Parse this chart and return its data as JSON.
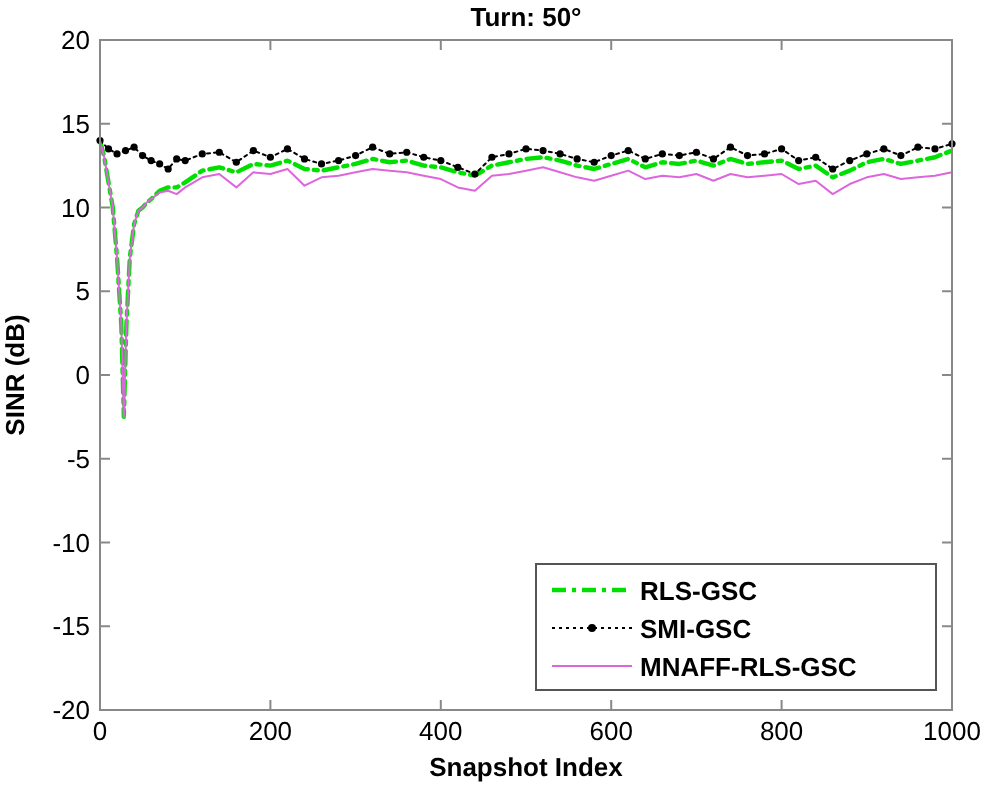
{
  "chart_data": {
    "type": "line",
    "title": "Turn: 50°",
    "xlabel": "Snapshot Index",
    "ylabel": "SINR (dB)",
    "xlim": [
      0,
      1000
    ],
    "xticks": [
      0,
      200,
      400,
      600,
      800,
      1000
    ],
    "ylim": [
      -20,
      20
    ],
    "yticks": [
      -20,
      -15,
      -10,
      -5,
      0,
      5,
      10,
      15,
      20
    ],
    "grid": false,
    "legend": "bottom right",
    "series": [
      {
        "name": "RLS-GSC",
        "color": "#00e000",
        "line_style": "dashed",
        "marker": "none",
        "x": [
          0,
          5,
          10,
          15,
          20,
          25,
          28,
          31,
          35,
          40,
          45,
          50,
          55,
          60,
          70,
          80,
          90,
          100,
          120,
          140,
          160,
          180,
          200,
          220,
          240,
          260,
          280,
          300,
          320,
          340,
          360,
          380,
          400,
          420,
          440,
          460,
          480,
          500,
          520,
          540,
          560,
          580,
          600,
          620,
          640,
          660,
          680,
          700,
          720,
          740,
          760,
          780,
          800,
          820,
          840,
          860,
          880,
          900,
          920,
          940,
          960,
          980,
          1000
        ],
        "values": [
          14,
          13,
          11.5,
          10,
          7,
          3,
          -2.5,
          3,
          7,
          9,
          9.8,
          10,
          10.3,
          10.5,
          11,
          11.2,
          11.2,
          11.5,
          12.2,
          12.4,
          12.1,
          12.6,
          12.5,
          12.8,
          12.3,
          12.2,
          12.4,
          12.6,
          12.9,
          12.7,
          12.8,
          12.5,
          12.4,
          12.1,
          11.9,
          12.5,
          12.7,
          12.9,
          13.0,
          12.8,
          12.5,
          12.3,
          12.6,
          12.9,
          12.4,
          12.7,
          12.6,
          12.8,
          12.5,
          12.9,
          12.6,
          12.7,
          12.8,
          12.3,
          12.5,
          11.8,
          12.2,
          12.7,
          12.9,
          12.6,
          12.8,
          13.0,
          13.4
        ]
      },
      {
        "name": "SMI-GSC",
        "color": "#000000",
        "line_style": "dotted",
        "marker": "circle",
        "x": [
          0,
          10,
          20,
          30,
          40,
          50,
          60,
          70,
          80,
          90,
          100,
          120,
          140,
          160,
          180,
          200,
          220,
          240,
          260,
          280,
          300,
          320,
          340,
          360,
          380,
          400,
          420,
          440,
          460,
          480,
          500,
          520,
          540,
          560,
          580,
          600,
          620,
          640,
          660,
          680,
          700,
          720,
          740,
          760,
          780,
          800,
          820,
          840,
          860,
          880,
          900,
          920,
          940,
          960,
          980,
          1000
        ],
        "values": [
          14.0,
          13.5,
          13.2,
          13.4,
          13.6,
          13.1,
          12.8,
          12.6,
          12.3,
          12.9,
          12.8,
          13.2,
          13.3,
          12.7,
          13.4,
          13.0,
          13.5,
          12.9,
          12.6,
          12.8,
          13.1,
          13.6,
          13.2,
          13.3,
          13.0,
          12.8,
          12.4,
          12.0,
          13.0,
          13.2,
          13.5,
          13.4,
          13.2,
          12.9,
          12.7,
          13.1,
          13.4,
          12.9,
          13.2,
          13.1,
          13.3,
          12.9,
          13.6,
          13.1,
          13.2,
          13.5,
          12.8,
          13.0,
          12.3,
          12.8,
          13.2,
          13.5,
          13.1,
          13.6,
          13.5,
          13.8
        ]
      },
      {
        "name": "MNAFF-RLS-GSC",
        "color": "#dd66dd",
        "line_style": "solid",
        "marker": "none",
        "x": [
          0,
          5,
          10,
          15,
          20,
          25,
          28,
          31,
          35,
          40,
          45,
          50,
          55,
          60,
          70,
          80,
          90,
          100,
          120,
          140,
          160,
          180,
          200,
          220,
          240,
          260,
          280,
          300,
          320,
          340,
          360,
          380,
          400,
          420,
          440,
          460,
          480,
          500,
          520,
          540,
          560,
          580,
          600,
          620,
          640,
          660,
          680,
          700,
          720,
          740,
          760,
          780,
          800,
          820,
          840,
          860,
          880,
          900,
          920,
          940,
          960,
          980,
          1000
        ],
        "values": [
          14,
          13,
          11.5,
          10,
          7,
          3,
          -2.5,
          3,
          7,
          9,
          9.8,
          10,
          10.3,
          10.5,
          10.9,
          11,
          10.8,
          11.2,
          11.8,
          12.0,
          11.2,
          12.1,
          12.0,
          12.3,
          11.3,
          11.8,
          11.9,
          12.1,
          12.3,
          12.2,
          12.1,
          11.9,
          11.7,
          11.2,
          11.0,
          11.9,
          12.0,
          12.2,
          12.4,
          12.1,
          11.8,
          11.6,
          11.9,
          12.2,
          11.7,
          11.9,
          11.8,
          12.0,
          11.6,
          12.0,
          11.8,
          11.9,
          12.0,
          11.4,
          11.6,
          10.8,
          11.4,
          11.8,
          12.0,
          11.7,
          11.8,
          11.9,
          12.1
        ]
      }
    ]
  }
}
